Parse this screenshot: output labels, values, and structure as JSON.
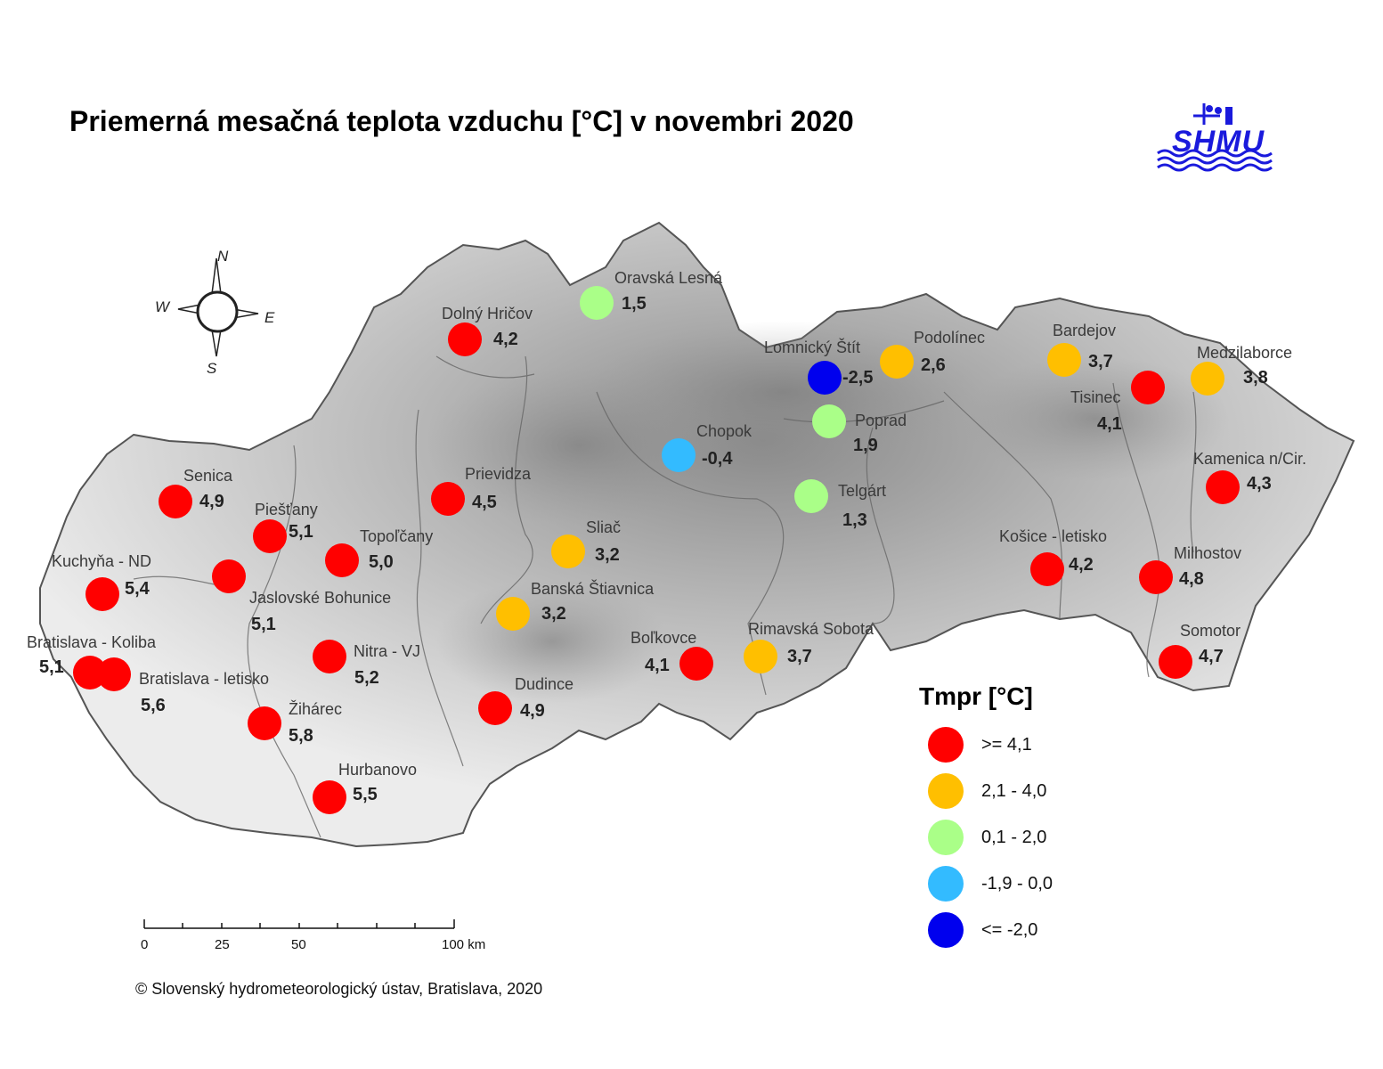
{
  "title": "Priemerná mesačná teplota vzduchu [°C] v novembri 2020",
  "logo": {
    "text": "SHMU",
    "color": "#1a1adc"
  },
  "compass": {
    "n": "N",
    "s": "S",
    "e": "E",
    "w": "W"
  },
  "legend": {
    "title": "Tmpr [°C]",
    "classes": [
      {
        "label": ">= 4,1",
        "color": "#ff0000"
      },
      {
        "label": "2,1 - 4,0",
        "color": "#ffbf00"
      },
      {
        "label": "0,1 - 2,0",
        "color": "#aaff88"
      },
      {
        "label": "-1,9 - 0,0",
        "color": "#33bbff"
      },
      {
        "label": "<= -2,0",
        "color": "#0000ee"
      }
    ]
  },
  "scale_bar": {
    "labels": [
      "0",
      "25",
      "50",
      "100 km"
    ]
  },
  "copyright": "© Slovenský hydrometeorologický ústav, Bratislava, 2020",
  "stations": [
    {
      "name": "Oravská Lesná",
      "value": "1,5"
    },
    {
      "name": "Dolný Hričov",
      "value": "4,2"
    },
    {
      "name": "Lomnický Štít",
      "value": "-2,5"
    },
    {
      "name": "Podolínec",
      "value": "2,6"
    },
    {
      "name": "Bardejov",
      "value": "3,7"
    },
    {
      "name": "Medzilaborce",
      "value": "3,8"
    },
    {
      "name": "Tisinec",
      "value": "4,1"
    },
    {
      "name": "Poprad",
      "value": "1,9"
    },
    {
      "name": "Chopok",
      "value": "-0,4"
    },
    {
      "name": "Kamenica n/Cir.",
      "value": "4,3"
    },
    {
      "name": "Senica",
      "value": "4,9"
    },
    {
      "name": "Prievidza",
      "value": "4,5"
    },
    {
      "name": "Telgárt",
      "value": "1,3"
    },
    {
      "name": "Piešťany",
      "value": "5,1"
    },
    {
      "name": "Topoľčany",
      "value": "5,0"
    },
    {
      "name": "Sliač",
      "value": "3,2"
    },
    {
      "name": "Košice - letisko",
      "value": "4,2"
    },
    {
      "name": "Milhostov",
      "value": "4,8"
    },
    {
      "name": "Kuchyňa - ND",
      "value": "5,4"
    },
    {
      "name": "Jaslovské Bohunice",
      "value": "5,1"
    },
    {
      "name": "Banská Štiavnica",
      "value": "3,2"
    },
    {
      "name": "Bratislava - Koliba",
      "value": "5,1"
    },
    {
      "name": "Nitra - VJ",
      "value": "5,2"
    },
    {
      "name": "Boľkovce",
      "value": "4,1"
    },
    {
      "name": "Rimavská Sobota",
      "value": "3,7"
    },
    {
      "name": "Somotor",
      "value": "4,7"
    },
    {
      "name": "Bratislava - letisko",
      "value": "5,6"
    },
    {
      "name": "Dudince",
      "value": "4,9"
    },
    {
      "name": "Žihárec",
      "value": "5,8"
    },
    {
      "name": "Hurbanovo",
      "value": "5,5"
    }
  ]
}
